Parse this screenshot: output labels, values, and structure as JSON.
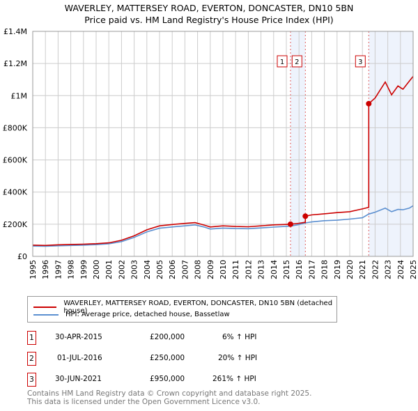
{
  "chart_data": {
    "type": "line",
    "title": "WAVERLEY, MATTERSEY ROAD, EVERTON, DONCASTER, DN10 5BN",
    "subtitle": "Price paid vs. HM Land Registry's House Price Index (HPI)",
    "xlim": [
      1995,
      2025
    ],
    "ylim": [
      0,
      1400000
    ],
    "x_ticks": [
      "1995",
      "1996",
      "1997",
      "1998",
      "1999",
      "2000",
      "2001",
      "2002",
      "2003",
      "2004",
      "2005",
      "2006",
      "2007",
      "2008",
      "2009",
      "2010",
      "2011",
      "2012",
      "2013",
      "2014",
      "2015",
      "2016",
      "2017",
      "2018",
      "2019",
      "2020",
      "2021",
      "2022",
      "2023",
      "2024",
      "2025"
    ],
    "y_ticks": [
      {
        "v": 0,
        "label": "£0"
      },
      {
        "v": 200000,
        "label": "£200K"
      },
      {
        "v": 400000,
        "label": "£400K"
      },
      {
        "v": 600000,
        "label": "£600K"
      },
      {
        "v": 800000,
        "label": "£800K"
      },
      {
        "v": 1000000,
        "label": "£1M"
      },
      {
        "v": 1200000,
        "label": "£1.2M"
      },
      {
        "v": 1400000,
        "label": "£1.4M"
      }
    ],
    "grid": true,
    "series": [
      {
        "name": "WAVERLEY, MATTERSEY ROAD, EVERTON, DONCASTER, DN10 5BN (detached house)",
        "color": "#cc0000",
        "x": [
          1995,
          1996,
          1997,
          1998,
          1999,
          2000,
          2001,
          2002,
          2003,
          2004,
          2005,
          2006,
          2007,
          2007.8,
          2008.5,
          2009,
          2010,
          2011,
          2012,
          2013,
          2014,
          2015.33,
          2016,
          2016.5,
          2016.5,
          2017,
          2018,
          2019,
          2020,
          2021,
          2021.5,
          2021.5,
          2022,
          2022.8,
          2023.3,
          2023.8,
          2024.2,
          2024.7,
          2025
        ],
        "y": [
          70000,
          68000,
          72000,
          74000,
          76000,
          79000,
          84000,
          100000,
          128000,
          165000,
          190000,
          198000,
          205000,
          210000,
          195000,
          183000,
          190000,
          186000,
          184000,
          190000,
          196000,
          200000,
          206000,
          212000,
          250000,
          258000,
          265000,
          272000,
          278000,
          295000,
          305000,
          950000,
          985000,
          1085000,
          1005000,
          1060000,
          1040000,
          1090000,
          1120000
        ]
      },
      {
        "name": "HPI: Average price, detached house, Bassetlaw",
        "color": "#5b8fd0",
        "x": [
          1995,
          1996,
          1997,
          1998,
          1999,
          2000,
          2001,
          2002,
          2003,
          2004,
          2005,
          2006,
          2007,
          2007.8,
          2008.5,
          2009,
          2010,
          2011,
          2012,
          2013,
          2014,
          2015.33,
          2016,
          2016.5,
          2017,
          2018,
          2019,
          2020,
          2021,
          2021.5,
          2022,
          2022.8,
          2023.3,
          2023.8,
          2024.2,
          2024.7,
          2025
        ],
        "y": [
          64000,
          63000,
          66000,
          68000,
          70000,
          73000,
          78000,
          92000,
          118000,
          152000,
          175000,
          183000,
          190000,
          196000,
          183000,
          170000,
          176000,
          173000,
          172000,
          177000,
          182000,
          188000,
          198000,
          208000,
          214000,
          222000,
          225000,
          232000,
          240000,
          263000,
          275000,
          300000,
          278000,
          292000,
          290000,
          300000,
          315000
        ]
      }
    ],
    "transactions": [
      {
        "id": "1",
        "date": "30-APR-2015",
        "x": 2015.33,
        "price": "£200,000",
        "value": 200000,
        "hpi": "6% ↑ HPI"
      },
      {
        "id": "2",
        "date": "01-JUL-2016",
        "x": 2016.5,
        "price": "£250,000",
        "value": 250000,
        "hpi": "20% ↑ HPI"
      },
      {
        "id": "3",
        "date": "30-JUN-2021",
        "x": 2021.5,
        "price": "£950,000",
        "value": 950000,
        "hpi": "261% ↑ HPI"
      }
    ],
    "legend_placement": "below"
  },
  "footer": [
    "Contains HM Land Registry data © Crown copyright and database right 2025.",
    "This data is licensed under the Open Government Licence v3.0."
  ]
}
